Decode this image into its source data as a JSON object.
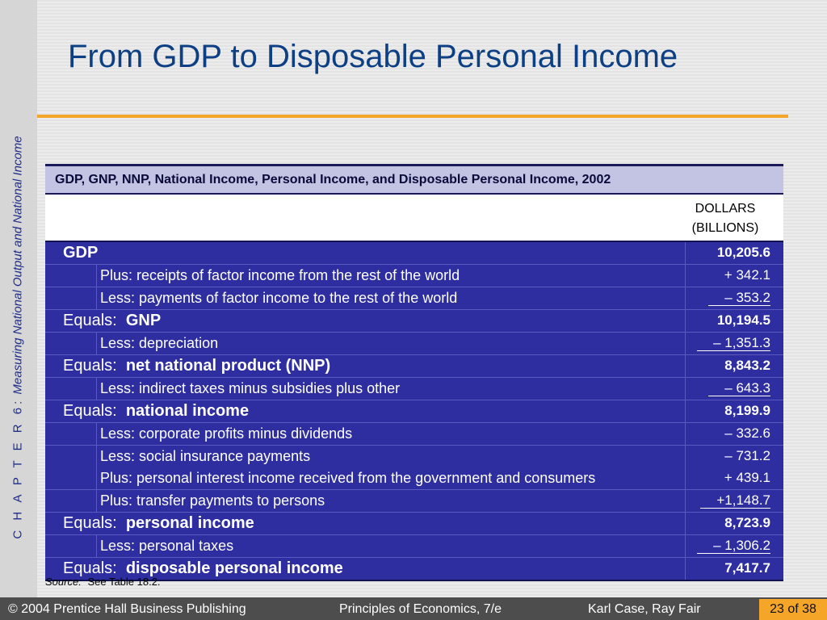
{
  "slide": {
    "title": "From GDP to Disposable Personal Income",
    "side_chapter": "C H A P T E R  6:",
    "side_title": "Measuring National Output and National Income",
    "colors": {
      "title": "#0d3f84",
      "accent": "#f5a628",
      "table_body": "#2e2ea0",
      "caption_bg": "#c3c3e4",
      "side_text": "#1f2b8a"
    }
  },
  "table": {
    "caption": "GDP, GNP, NNP, National Income, Personal Income, and Disposable Personal Income, 2002",
    "units_line1": "DOLLARS",
    "units_line2": "(BILLIONS)",
    "rows": [
      {
        "prefix": "",
        "label": "GDP",
        "value": "10,205.6"
      },
      {
        "prefix": "",
        "label": "Plus:  receipts of factor income from the rest of the world",
        "value": "+ 342.1"
      },
      {
        "prefix": "",
        "label": "Less:  payments of factor income to the rest of the world",
        "value": "– 353.2"
      },
      {
        "prefix": "Equals:",
        "label": "GNP",
        "value": "10,194.5"
      },
      {
        "prefix": "",
        "label": "Less:  depreciation",
        "value": "– 1,351.3"
      },
      {
        "prefix": "Equals:",
        "label": "net national product (NNP)",
        "value": "8,843.2"
      },
      {
        "prefix": "",
        "label": "Less:  indirect taxes minus subsidies plus other",
        "value": "– 643.3"
      },
      {
        "prefix": "Equals:",
        "label": "national income",
        "value": "8,199.9"
      },
      {
        "prefix": "",
        "label": "Less:  corporate profits minus dividends",
        "value": "– 332.6"
      },
      {
        "prefix": "",
        "label": "Less:  social insurance payments",
        "value": "– 731.2"
      },
      {
        "prefix": "",
        "label": "Plus:  personal interest income received from the government and consumers",
        "value": "+ 439.1"
      },
      {
        "prefix": "",
        "label": "Plus:  transfer payments to persons",
        "value": "+1,148.7"
      },
      {
        "prefix": "Equals:",
        "label": "personal income",
        "value": "8,723.9"
      },
      {
        "prefix": "",
        "label": "Less:  personal taxes",
        "value": "– 1,306.2"
      },
      {
        "prefix": "Equals:",
        "label": "disposable personal income",
        "value": "7,417.7"
      }
    ]
  },
  "source": {
    "label": "Source:",
    "text": "See Table 18.2."
  },
  "footer": {
    "publisher": "© 2004 Prentice Hall Business Publishing",
    "book": "Principles of Economics, 7/e",
    "authors": "Karl Case, Ray Fair",
    "page": "23 of 38"
  }
}
